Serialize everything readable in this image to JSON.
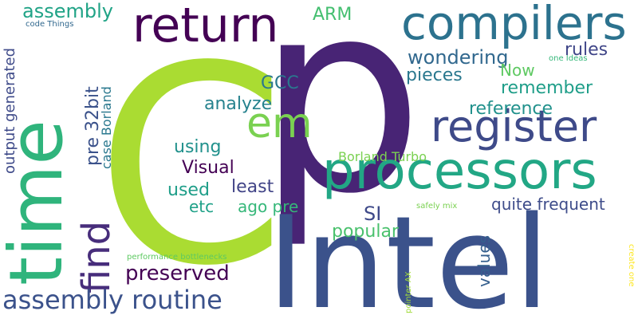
{
  "words": [
    {
      "text": "C",
      "color": "#aadc32"
    },
    {
      "text": "p",
      "color": "#482475"
    },
    {
      "text": "Intel",
      "color": "#3b528b"
    },
    {
      "text": "time",
      "color": "#2fb47c"
    },
    {
      "text": "processors",
      "color": "#22a785"
    },
    {
      "text": "compilers",
      "color": "#2c728e"
    },
    {
      "text": "return",
      "color": "#440154"
    },
    {
      "text": "register",
      "color": "#3e4a89"
    },
    {
      "text": "em",
      "color": "#7ad151"
    },
    {
      "text": "find",
      "color": "#472d7b"
    },
    {
      "text": "assembly routine",
      "color": "#3b528b"
    },
    {
      "text": "preserved",
      "color": "#440154"
    },
    {
      "text": "assembly",
      "color": "#20a386"
    },
    {
      "text": "wondering",
      "color": "#31688e"
    },
    {
      "text": "pieces",
      "color": "#2a788e"
    },
    {
      "text": "Now",
      "color": "#5ec962"
    },
    {
      "text": "remember",
      "color": "#1f9e89"
    },
    {
      "text": "reference",
      "color": "#21918c"
    },
    {
      "text": "rules",
      "color": "#404688"
    },
    {
      "text": "ARM",
      "color": "#44bf70"
    },
    {
      "text": "GCC",
      "color": "#2a788e"
    },
    {
      "text": "analyze",
      "color": "#26828e"
    },
    {
      "text": "using",
      "color": "#21918c"
    },
    {
      "text": "Visual",
      "color": "#440154"
    },
    {
      "text": "used",
      "color": "#1f9e89"
    },
    {
      "text": "least",
      "color": "#414487"
    },
    {
      "text": "etc",
      "color": "#1fa188"
    },
    {
      "text": "ago pre",
      "color": "#35b779"
    },
    {
      "text": "SI",
      "color": "#3e4989"
    },
    {
      "text": "popular",
      "color": "#4ac16d"
    },
    {
      "text": "quite frequent",
      "color": "#3e4c8a"
    },
    {
      "text": "Borland Turbo",
      "color": "#7ad151"
    },
    {
      "text": "values",
      "color": "#355f8d"
    },
    {
      "text": "pre 32bit",
      "color": "#3b528b"
    },
    {
      "text": "case Borland",
      "color": "#2a788e"
    },
    {
      "text": "output generated",
      "color": "#3e4a89"
    },
    {
      "text": "code Things",
      "color": "#31688e"
    },
    {
      "text": "performance bottlenecks",
      "color": "#5ec962"
    },
    {
      "text": "one Ideas",
      "color": "#35b779"
    },
    {
      "text": "safely mix",
      "color": "#7ad151"
    },
    {
      "text": "pointer AX",
      "color": "#a0da39"
    },
    {
      "text": "create one",
      "color": "#fde725"
    }
  ]
}
